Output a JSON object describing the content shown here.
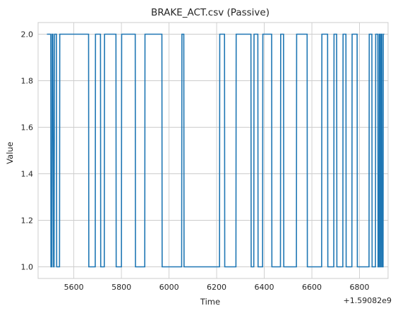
{
  "chart_data": {
    "type": "line",
    "step": true,
    "title": "BRAKE_ACT.csv (Passive)",
    "xlabel": "Time",
    "ylabel": "Value",
    "x_offset_label": "+1.59082e9",
    "xlim": [
      5450,
      6920
    ],
    "ylim": [
      0.95,
      2.05
    ],
    "x_ticks": [
      5600,
      5800,
      6000,
      6200,
      6400,
      6600,
      6800
    ],
    "x_tick_labels": [
      "5600",
      "5800",
      "6000",
      "6200",
      "6400",
      "6600",
      "6800"
    ],
    "y_ticks": [
      1.0,
      1.2,
      1.4,
      1.6,
      1.8,
      2.0
    ],
    "y_tick_labels": [
      "1.0",
      "1.2",
      "1.4",
      "1.6",
      "1.8",
      "2.0"
    ],
    "grid": true,
    "color": "#1f77b4",
    "series": [
      {
        "x": [
          5487,
          5503,
          5504,
          5508,
          5509,
          5512,
          5515,
          5517,
          5519,
          5527,
          5528,
          5540,
          5541,
          5662,
          5663,
          5690,
          5691,
          5712,
          5713,
          5728,
          5729,
          5777,
          5778,
          5800,
          5801,
          5858,
          5859,
          5898,
          5899,
          5970,
          5971,
          6053,
          6054,
          6062,
          6063,
          6212,
          6213,
          6233,
          6234,
          6281,
          6282,
          6344,
          6345,
          6356,
          6357,
          6373,
          6374,
          6393,
          6394,
          6431,
          6432,
          6468,
          6469,
          6481,
          6482,
          6535,
          6536,
          6580,
          6581,
          6641,
          6642,
          6666,
          6667,
          6692,
          6693,
          6704,
          6705,
          6730,
          6731,
          6743,
          6744,
          6768,
          6769,
          6790,
          6791,
          6840,
          6841,
          6852,
          6853,
          6867,
          6868,
          6877,
          6878,
          6882,
          6883,
          6886,
          6887,
          6890,
          6891,
          6894,
          6895,
          6899,
          6900,
          6904
        ],
        "y": [
          2,
          2,
          1,
          1,
          2,
          2,
          1,
          1,
          2,
          2,
          1,
          1,
          2,
          2,
          1,
          1,
          2,
          2,
          1,
          1,
          2,
          2,
          1,
          1,
          2,
          2,
          1,
          1,
          2,
          2,
          1,
          1,
          2,
          2,
          1,
          1,
          2,
          2,
          1,
          1,
          2,
          2,
          1,
          1,
          2,
          2,
          1,
          1,
          2,
          2,
          1,
          1,
          2,
          2,
          1,
          1,
          2,
          2,
          1,
          1,
          2,
          2,
          1,
          1,
          2,
          2,
          1,
          1,
          2,
          2,
          1,
          1,
          2,
          2,
          1,
          1,
          2,
          2,
          1,
          1,
          2,
          2,
          1,
          1,
          2,
          2,
          1,
          1,
          2,
          2,
          1,
          1,
          2,
          2
        ]
      }
    ]
  }
}
